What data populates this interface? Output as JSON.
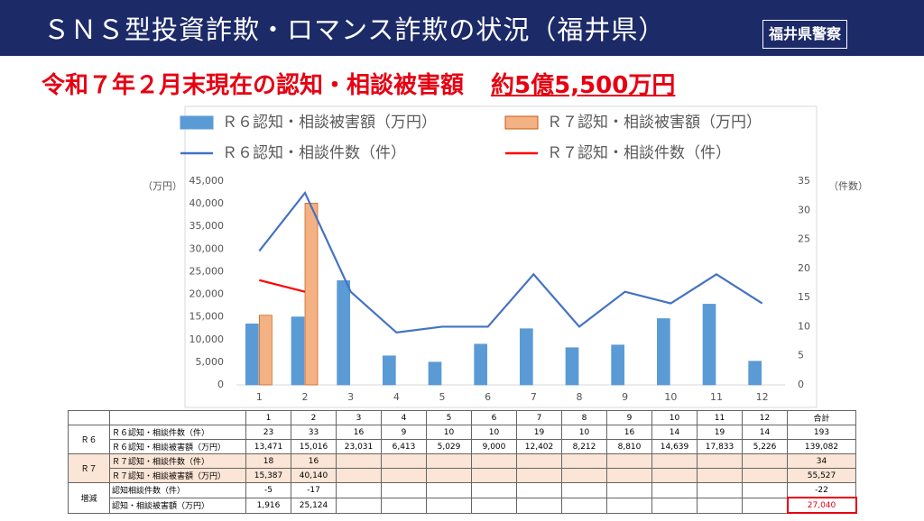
{
  "header": {
    "title": "ＳＮＳ型投資詐欺・ロマンス詐欺の状況（福井県）",
    "logo": "福井県警察",
    "subtitle": "令和７年２月末現在の認知・相談被害額",
    "amount": "約5億5,500万円"
  },
  "chart_data": {
    "type": "bar",
    "categories": [
      "1",
      "2",
      "3",
      "4",
      "5",
      "6",
      "7",
      "8",
      "9",
      "10",
      "11",
      "12"
    ],
    "series": [
      {
        "name": "Ｒ６認知・相談被害額（万円）",
        "type": "bar",
        "color": "#5b9bd5",
        "values": [
          13471,
          15016,
          23031,
          6413,
          5029,
          9000,
          12402,
          8212,
          8810,
          14639,
          17833,
          5226
        ]
      },
      {
        "name": "Ｒ７認知・相談被害額（万円）",
        "type": "bar",
        "color": "#f4b183",
        "values": [
          15387,
          40140,
          null,
          null,
          null,
          null,
          null,
          null,
          null,
          null,
          null,
          null
        ]
      },
      {
        "name": "Ｒ６認知・相談件数（件）",
        "type": "line",
        "axis": "y2",
        "color": "#4472c4",
        "values": [
          23,
          33,
          16,
          9,
          10,
          10,
          19,
          10,
          16,
          14,
          19,
          14
        ]
      },
      {
        "name": "Ｒ７認知・相談件数（件）",
        "type": "line",
        "axis": "y2",
        "color": "#ff0000",
        "values": [
          18,
          16,
          null,
          null,
          null,
          null,
          null,
          null,
          null,
          null,
          null,
          null
        ]
      }
    ],
    "ylim": [
      0,
      45000
    ],
    "yticks": [
      0,
      {
        "value": 5000,
        "label": "5,000"
      },
      {
        "value": 10000,
        "label": "10,000"
      },
      {
        "value": 15000,
        "label": "15,000"
      },
      {
        "value": 20000,
        "label": "20,000"
      },
      {
        "value": 25000,
        "label": "25,000"
      },
      {
        "value": 30000,
        "label": "30,000"
      },
      {
        "value": 35000,
        "label": "35,000"
      },
      {
        "value": 40000,
        "label": "40,000"
      },
      {
        "value": 45000,
        "label": "45,000"
      }
    ],
    "y2lim": [
      0,
      35
    ],
    "y2ticks": [
      0,
      5,
      10,
      15,
      20,
      25,
      30,
      35
    ],
    "y_label": "（万円）",
    "y2_label": "（件数）",
    "grid": false
  },
  "table": {
    "header": [
      "1",
      "2",
      "3",
      "4",
      "5",
      "6",
      "7",
      "8",
      "9",
      "10",
      "11",
      "12",
      "合計"
    ],
    "groups": [
      {
        "label": "Ｒ６",
        "rows": [
          {
            "label": "Ｒ６認知・相談件数（件）",
            "values": [
              "23",
              "33",
              "16",
              "9",
              "10",
              "10",
              "19",
              "10",
              "16",
              "14",
              "19",
              "14"
            ],
            "total": "193"
          },
          {
            "label": "Ｒ６認知・相談被害額（万円）",
            "values": [
              "13,471",
              "15,016",
              "23,031",
              "6,413",
              "5,029",
              "9,000",
              "12,402",
              "8,212",
              "8,810",
              "14,639",
              "17,833",
              "5,226"
            ],
            "total": "139,082"
          }
        ]
      },
      {
        "label": "Ｒ７",
        "rows": [
          {
            "label": "Ｒ７認知・相談件数（件）",
            "values": [
              "18",
              "16"
            ],
            "total": "34"
          },
          {
            "label": "Ｒ７認知・相談被害額（万円）",
            "values": [
              "15,387",
              "40,140"
            ],
            "total": "55,527"
          }
        ]
      },
      {
        "label": "増減",
        "rows": [
          {
            "label": "認知相談件数（件）",
            "values": [
              "-5",
              "-17"
            ],
            "total": "-22"
          },
          {
            "label": "認知・相談被害額（万円）",
            "values": [
              "1,916",
              "25,124"
            ],
            "total": "27,040"
          }
        ]
      }
    ]
  }
}
